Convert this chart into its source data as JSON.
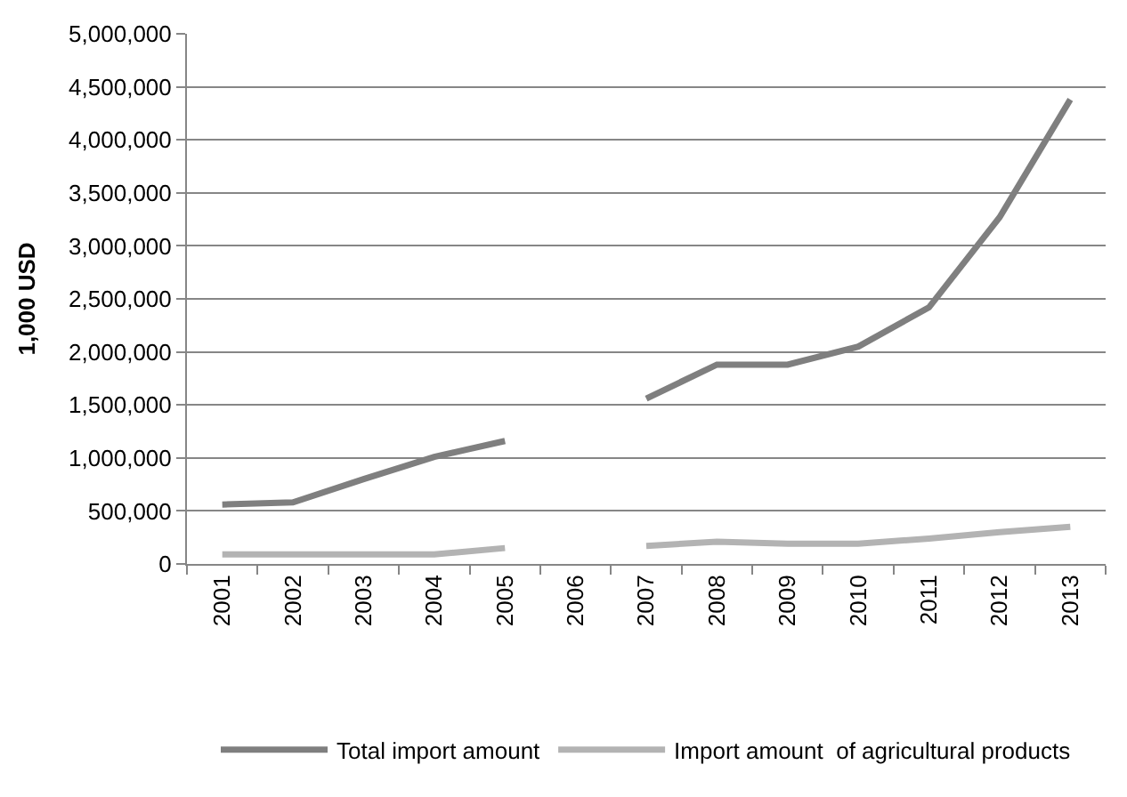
{
  "chart_data": {
    "type": "line",
    "ylabel": "1,000 USD",
    "categories": [
      "2001",
      "2002",
      "2003",
      "2004",
      "2005",
      "2006",
      "2007",
      "2008",
      "2009",
      "2010",
      "2011",
      "2012",
      "2013"
    ],
    "series": [
      {
        "name": "Total import amount",
        "color": "#7f7f7f",
        "values": [
          560000,
          580000,
          800000,
          1010000,
          1160000,
          null,
          1560000,
          1880000,
          1880000,
          2050000,
          2420000,
          3270000,
          4380000
        ]
      },
      {
        "name": "Import amount  of agricultural products",
        "color": "#b3b3b3",
        "values": [
          90000,
          90000,
          90000,
          90000,
          150000,
          null,
          170000,
          210000,
          190000,
          190000,
          240000,
          300000,
          350000
        ]
      }
    ],
    "ylim": [
      0,
      5000000
    ],
    "yticks": [
      {
        "value": 0,
        "label": "0"
      },
      {
        "value": 500000,
        "label": "500,000"
      },
      {
        "value": 1000000,
        "label": "1,000,000"
      },
      {
        "value": 1500000,
        "label": "1,500,000"
      },
      {
        "value": 2000000,
        "label": "2,000,000"
      },
      {
        "value": 2500000,
        "label": "2,500,000"
      },
      {
        "value": 3000000,
        "label": "3,000,000"
      },
      {
        "value": 3500000,
        "label": "3,500,000"
      },
      {
        "value": 4000000,
        "label": "4,000,000"
      },
      {
        "value": 4500000,
        "label": "4,500,000"
      },
      {
        "value": 5000000,
        "label": "5,000,000"
      }
    ],
    "grid": "y",
    "legend": "bottom",
    "marker": "none",
    "line_style": "solid"
  }
}
